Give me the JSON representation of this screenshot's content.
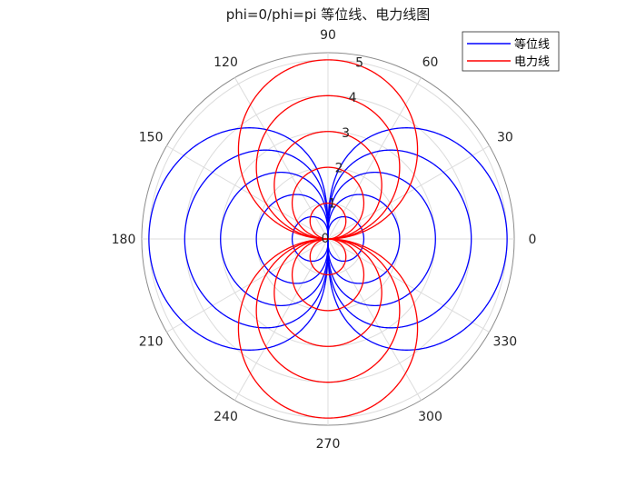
{
  "chart_data": {
    "type": "polar-line",
    "title": "phi=0/phi=pi 等位线、电力线图",
    "theta_ticks_deg": [
      0,
      30,
      60,
      90,
      120,
      150,
      180,
      210,
      240,
      270,
      300,
      330
    ],
    "theta_tick_labels": [
      "0",
      "30",
      "60",
      "90",
      "120",
      "150",
      "180",
      "210",
      "240",
      "270",
      "300",
      "330"
    ],
    "r_ticks": [
      0,
      1,
      2,
      3,
      4,
      5
    ],
    "r_tick_labels": [
      "0",
      "1",
      "2",
      "3",
      "4",
      "5"
    ],
    "rlim": [
      0,
      5.2
    ],
    "grid": true,
    "legend": {
      "placement": "top-right",
      "entries": [
        {
          "label": "等位线",
          "color": "#0000ff"
        },
        {
          "label": "电力线",
          "color": "#ff0000"
        }
      ]
    },
    "series": [
      {
        "name": "等位线",
        "color": "#0000ff",
        "equation": "r = c * |cos(theta)|^(1/2)",
        "constants": [
          1,
          2,
          3,
          4,
          5
        ]
      },
      {
        "name": "电力线",
        "color": "#ff0000",
        "equation": "r = c * |sin(theta)|",
        "constants": [
          1,
          2,
          3,
          4,
          5
        ]
      }
    ]
  }
}
